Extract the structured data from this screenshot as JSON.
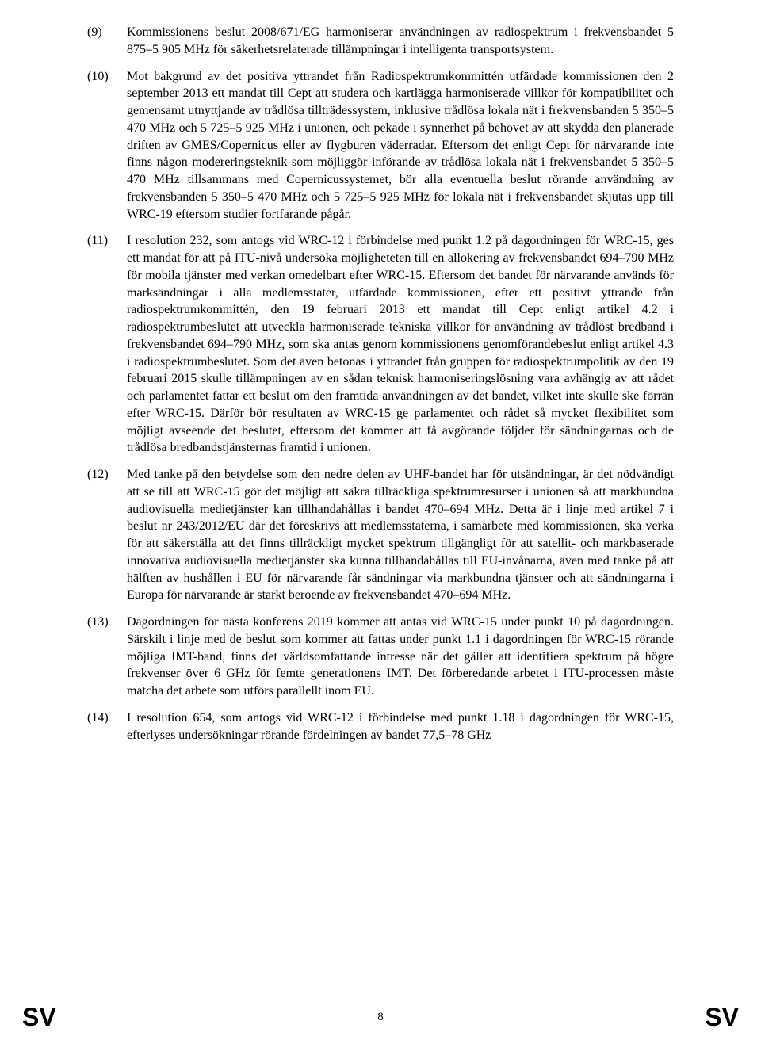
{
  "recitals": [
    {
      "num": "(9)",
      "text": "Kommissionens beslut 2008/671/EG harmoniserar användningen av radiospektrum i frekvensbandet 5 875–5 905 MHz för säkerhetsrelaterade tillämpningar i intelligenta transportsystem."
    },
    {
      "num": "(10)",
      "text": "Mot bakgrund av det positiva yttrandet från Radiospektrumkommittén utfärdade kommissionen den 2 september 2013 ett mandat till Cept att studera och kartlägga harmoniserade villkor för kompatibilitet och gemensamt utnyttjande av trådlösa tillträdessystem, inklusive trådlösa lokala nät i frekvensbanden 5 350–5 470 MHz och 5 725–5 925 MHz i unionen, och pekade i synnerhet på behovet av att skydda den planerade driften av GMES/Copernicus eller av flygburen väderradar. Eftersom det enligt Cept för närvarande inte finns någon modereringsteknik som möjliggör införande av trådlösa lokala nät i frekvensbandet 5 350–5 470 MHz tillsammans med Copernicussystemet, bör alla eventuella beslut rörande användning av frekvensbanden 5 350–5 470 MHz och 5 725–5 925 MHz för lokala nät i frekvensbandet skjutas upp till WRC-19 eftersom studier fortfarande pågår."
    },
    {
      "num": "(11)",
      "text": "I resolution 232, som antogs vid WRC-12 i förbindelse med punkt 1.2 på dagordningen för WRC-15, ges ett mandat för att på ITU-nivå undersöka möjligheteten till en allokering av frekvensbandet 694–790 MHz för mobila tjänster med verkan omedelbart efter WRC-15. Eftersom det bandet för närvarande används för marksändningar i alla medlemsstater, utfärdade kommissionen, efter ett positivt yttrande från radiospektrumkommittén, den 19 februari 2013 ett mandat till Cept enligt artikel 4.2 i radiospektrumbeslutet att utveckla harmoniserade tekniska villkor för användning av trådlöst bredband i frekvensbandet 694–790 MHz, som ska antas genom kommissionens genomförandebeslut enligt artikel 4.3 i radiospektrumbeslutet. Som det även betonas i yttrandet från gruppen för radiospektrumpolitik av den 19 februari 2015 skulle tillämpningen av en sådan teknisk harmoniseringslösning vara avhängig av att rådet och parlamentet fattar ett beslut om den framtida användningen av det bandet, vilket inte skulle ske förrän efter WRC-15. Därför bör resultaten av WRC-15 ge parlamentet och rådet så mycket flexibilitet som möjligt avseende det beslutet, eftersom det kommer att få avgörande följder för sändningarnas och de trådlösa bredbandstjänsternas framtid i unionen."
    },
    {
      "num": "(12)",
      "text": "Med tanke på den betydelse som den nedre delen av UHF-bandet har för utsändningar, är det nödvändigt att se till att WRC-15 gör det möjligt att säkra tillräckliga spektrumresurser i unionen så att markbundna audiovisuella medietjänster kan tillhandahållas i bandet 470–694 MHz. Detta är i linje med artikel 7 i beslut nr 243/2012/EU där det föreskrivs att medlemsstaterna, i samarbete med kommissionen, ska verka för att säkerställa att det finns tillräckligt mycket spektrum tillgängligt för att satellit- och markbaserade innovativa audiovisuella medietjänster ska kunna tillhandahållas till EU-invånarna, även med tanke på att hälften av hushållen i EU för närvarande får sändningar via markbundna tjänster och att sändningarna i Europa för närvarande är starkt beroende av frekvensbandet 470–694 MHz."
    },
    {
      "num": "(13)",
      "text": "Dagordningen för nästa konferens 2019 kommer att antas vid WRC-15 under punkt 10 på dagordningen. Särskilt i linje med de beslut som kommer att fattas under punkt 1.1 i dagordningen för WRC-15 rörande möjliga IMT-band, finns det världsomfattande intresse när det gäller att identifiera spektrum på högre frekvenser över 6 GHz för femte generationens IMT. Det förberedande arbetet i ITU-processen måste matcha det arbete som utförs parallellt inom EU."
    },
    {
      "num": "(14)",
      "text": "I resolution 654, som antogs vid WRC-12 i förbindelse med punkt 1.18 i dagordningen för WRC-15, efterlyses undersökningar rörande fördelningen av bandet 77,5–78 GHz"
    }
  ],
  "footer": {
    "left": "SV",
    "page": "8",
    "right": "SV"
  }
}
